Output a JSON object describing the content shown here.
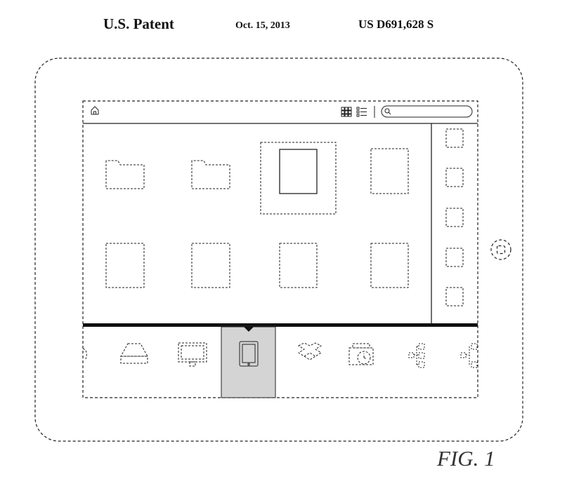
{
  "header": {
    "left": "U.S. Patent",
    "middle": "Oct. 15, 2013",
    "right": "US D691,628 S"
  },
  "figure_label": "FIG. 1",
  "colors": {
    "ink": "#222222",
    "selected_fill": "#d4d4d4",
    "background": "#ffffff"
  },
  "icons": {
    "toolbar": [
      "home-icon",
      "grid-view-icon",
      "list-view-icon",
      "search-field"
    ],
    "content": [
      "folder-icon",
      "folder-icon",
      "document-selected",
      "document-icon",
      "document-icon",
      "document-icon",
      "document-icon",
      "document-icon"
    ],
    "sidebar": [
      "thumb-1",
      "thumb-2",
      "thumb-3",
      "thumb-4",
      "thumb-5"
    ],
    "dock": [
      "partial-icon",
      "drive-icon",
      "monitor-icon",
      "tablet-icon",
      "dropbox-icon",
      "timemachine-icon",
      "network-icon",
      "network-icon-partial"
    ]
  }
}
